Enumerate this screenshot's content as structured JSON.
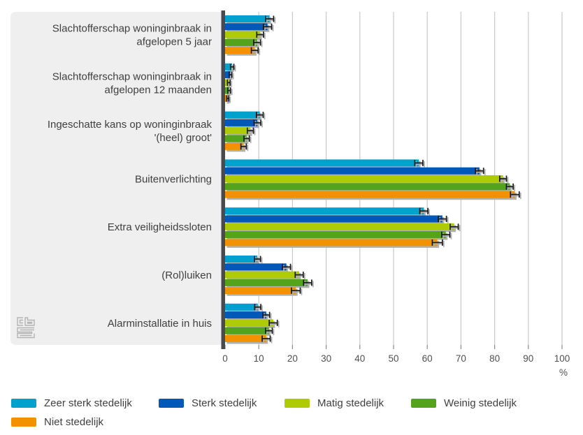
{
  "chart_data": {
    "type": "bar",
    "orientation": "horizontal",
    "title": "",
    "xlabel": "%",
    "axis": {
      "min": 0,
      "max": 100,
      "step": 10,
      "unit": "%"
    },
    "grid": true,
    "legend_position": "bottom",
    "error_bars": true,
    "categories": [
      {
        "label": "Slachtofferschap woninginbraak in afgelopen 5 jaar",
        "lines": [
          "Slachtofferschap woninginbraak in",
          "afgelopen 5 jaar"
        ]
      },
      {
        "label": "Slachtofferschap woninginbraak in afgelopen 12 maanden",
        "lines": [
          "Slachtofferschap woninginbraak in",
          "afgelopen 12 maanden"
        ]
      },
      {
        "label": "Ingeschatte kans op woninginbraak '(heel) groot'",
        "lines": [
          "Ingeschatte kans op woninginbraak",
          "'(heel) groot'"
        ]
      },
      {
        "label": "Buitenverlichting",
        "lines": [
          "Buitenverlichting"
        ]
      },
      {
        "label": "Extra veiligheidssloten",
        "lines": [
          "Extra veiligheidssloten"
        ]
      },
      {
        "label": "(Rol)luiken",
        "lines": [
          "(Rol)luiken"
        ]
      },
      {
        "label": "Alarminstallatie in huis",
        "lines": [
          "Alarminstallatie in huis"
        ]
      }
    ],
    "series": [
      {
        "name": "Zeer sterk stedelijk",
        "color": "#00a1cd",
        "values": [
          13.2,
          2.1,
          10.3,
          57.5,
          59.0,
          9.6,
          9.7
        ],
        "errors": [
          1.2,
          0.5,
          1.0,
          1.2,
          1.2,
          0.9,
          0.9
        ]
      },
      {
        "name": "Sterk stedelijk",
        "color": "#0058b8",
        "values": [
          12.6,
          1.6,
          9.6,
          75.5,
          64.5,
          18.2,
          12.2
        ],
        "errors": [
          1.2,
          0.4,
          1.0,
          1.2,
          1.2,
          1.2,
          1.0
        ]
      },
      {
        "name": "Matig stedelijk",
        "color": "#afcb05",
        "values": [
          10.4,
          1.1,
          7.5,
          82.5,
          68.0,
          22.0,
          14.3
        ],
        "errors": [
          1.0,
          0.4,
          0.9,
          1.0,
          1.2,
          1.2,
          1.2
        ]
      },
      {
        "name": "Weinig stedelijk",
        "color": "#53a31d",
        "values": [
          9.5,
          1.2,
          6.4,
          84.5,
          65.5,
          24.5,
          13.0
        ],
        "errors": [
          1.0,
          0.4,
          0.8,
          1.0,
          1.2,
          1.2,
          1.0
        ]
      },
      {
        "name": "Niet stedelijk",
        "color": "#f39200",
        "values": [
          8.8,
          0.8,
          5.5,
          86.0,
          63.0,
          21.0,
          12.2
        ],
        "errors": [
          1.0,
          0.3,
          0.8,
          1.3,
          1.5,
          1.3,
          1.2
        ]
      }
    ],
    "branding": {
      "logo": "cbs"
    },
    "tick_labels": [
      "0",
      "10",
      "20",
      "30",
      "40",
      "50",
      "60",
      "70",
      "80",
      "90",
      "100"
    ]
  },
  "colors": {
    "panel": "#efefef",
    "axis_line": "#4a4a4c",
    "gridline": "#c9c9c9",
    "label_text": "#3f3f3f",
    "tick_text": "#4f4f4f",
    "error_bar": "#1a1a1a",
    "bar_shadow": "#b1b1b1",
    "logo": "#b3b3b3"
  }
}
